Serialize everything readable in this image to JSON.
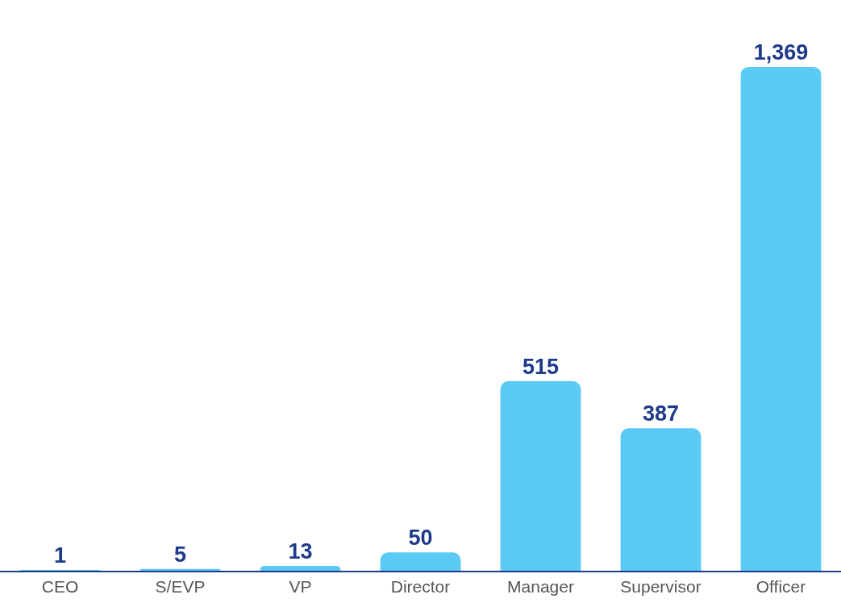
{
  "chart_data": {
    "type": "bar",
    "categories": [
      "CEO",
      "S/EVP",
      "VP",
      "Director",
      "Manager",
      "Supervisor",
      "Officer"
    ],
    "values": [
      1,
      5,
      13,
      50,
      515,
      387,
      1369
    ],
    "value_labels": [
      "1",
      "5",
      "13",
      "50",
      "515",
      "387",
      "1,369"
    ],
    "color": "#5bcbf5"
  }
}
